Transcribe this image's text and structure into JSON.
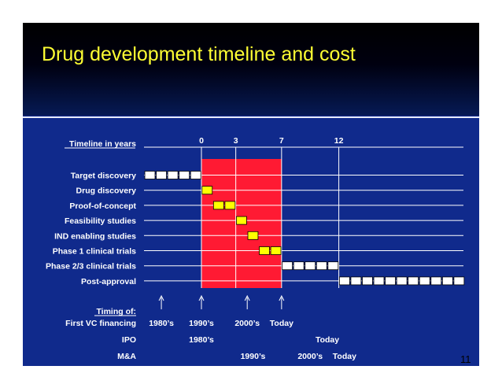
{
  "slide": {
    "title": "Drug development timeline and cost",
    "page_number": "11",
    "colors": {
      "background": "#102a8c",
      "title": "#ffff33",
      "highlight_region": "#ff1a33",
      "phase_box": "#ffff00",
      "white_box": "#ffffff"
    }
  },
  "timeline": {
    "header_label": "Timeline in years",
    "ticks": [
      {
        "label": "0",
        "year": 0
      },
      {
        "label": "3",
        "year": 3
      },
      {
        "label": "7",
        "year": 7
      },
      {
        "label": "12",
        "year": 12
      }
    ],
    "highlight_range": [
      0,
      7
    ],
    "phases": [
      {
        "name": "Target discovery",
        "style": "white",
        "start": -5,
        "end": 0
      },
      {
        "name": "Drug discovery",
        "style": "yellow",
        "start": 0,
        "end": 1
      },
      {
        "name": "Proof-of-concept",
        "style": "yellow",
        "start": 1,
        "end": 3
      },
      {
        "name": "Feasibility studies",
        "style": "yellow",
        "start": 3,
        "end": 4
      },
      {
        "name": "IND enabling studies",
        "style": "yellow",
        "start": 4,
        "end": 5
      },
      {
        "name": "Phase 1 clinical trials",
        "style": "yellow",
        "start": 5,
        "end": 7
      },
      {
        "name": "Phase 2/3 clinical trials",
        "style": "white",
        "start": 7,
        "end": 12
      },
      {
        "name": "Post-approval",
        "style": "white",
        "start": 12,
        "end": 23
      }
    ]
  },
  "timing": {
    "header": "Timing of:",
    "arrow_years": [
      -3.5,
      0,
      4,
      7
    ],
    "rows": [
      {
        "label": "First VC financing",
        "entries": [
          {
            "text": "1980’s",
            "year": -3.5
          },
          {
            "text": "1990’s",
            "year": 0
          },
          {
            "text": "2000’s",
            "year": 4
          },
          {
            "text": "Today",
            "year": 7
          }
        ]
      },
      {
        "label": "IPO",
        "entries": [
          {
            "text": "1980’s",
            "year": 0
          },
          {
            "text": "Today",
            "year": 11
          }
        ]
      },
      {
        "label": "M&A",
        "entries": [
          {
            "text": "1990’s",
            "year": 4.5
          },
          {
            "text": "2000’s",
            "year": 9.5
          },
          {
            "text": "Today",
            "year": 12.5
          }
        ]
      }
    ]
  }
}
